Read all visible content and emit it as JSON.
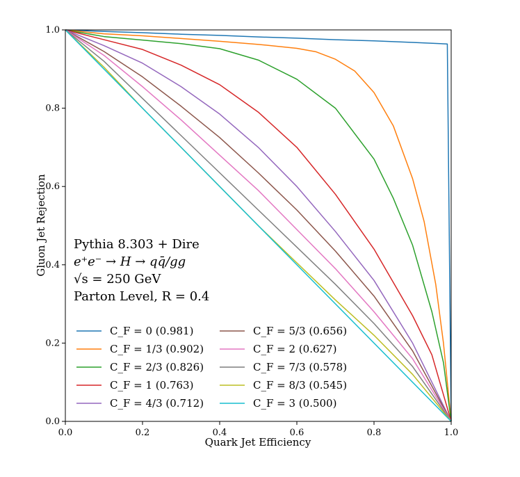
{
  "chart_data": {
    "type": "line",
    "xlabel": "Quark Jet Efficiency",
    "ylabel": "Gluon Jet Rejection",
    "xlim": [
      0.0,
      1.0
    ],
    "ylim": [
      0.0,
      1.0
    ],
    "xticks": [
      "0.0",
      "0.2",
      "0.4",
      "0.6",
      "0.8",
      "1.0"
    ],
    "yticks": [
      "0.0",
      "0.2",
      "0.4",
      "0.6",
      "0.8",
      "1.0"
    ],
    "grid": false,
    "legend_placement": "lower-left",
    "annotations": [
      "Pythia 8.303 + Dire",
      "e⁺e⁻ → H → qq̄/gg",
      "√s = 250 GeV",
      "Parton Level, R = 0.4"
    ],
    "series": [
      {
        "name": "C_F = 0 (0.981)",
        "color": "#1f77b4",
        "x": [
          0.0,
          0.1,
          0.2,
          0.3,
          0.4,
          0.5,
          0.6,
          0.7,
          0.8,
          0.9,
          0.99,
          1.0
        ],
        "y": [
          1.0,
          0.996,
          0.993,
          0.989,
          0.986,
          0.982,
          0.979,
          0.975,
          0.972,
          0.968,
          0.964,
          0.0
        ]
      },
      {
        "name": "C_F = 1/3 (0.902)",
        "color": "#ff7f0e",
        "x": [
          0.0,
          0.1,
          0.2,
          0.3,
          0.4,
          0.5,
          0.6,
          0.65,
          0.7,
          0.75,
          0.8,
          0.85,
          0.9,
          0.93,
          0.96,
          0.98,
          1.0
        ],
        "y": [
          1.0,
          0.99,
          0.985,
          0.978,
          0.971,
          0.963,
          0.953,
          0.944,
          0.925,
          0.895,
          0.84,
          0.755,
          0.62,
          0.51,
          0.35,
          0.2,
          0.0
        ]
      },
      {
        "name": "C_F = 2/3 (0.826)",
        "color": "#2ca02c",
        "x": [
          0.0,
          0.1,
          0.2,
          0.3,
          0.4,
          0.5,
          0.6,
          0.7,
          0.8,
          0.85,
          0.9,
          0.95,
          0.98,
          1.0
        ],
        "y": [
          1.0,
          0.983,
          0.974,
          0.965,
          0.952,
          0.923,
          0.874,
          0.8,
          0.67,
          0.57,
          0.45,
          0.28,
          0.15,
          0.0
        ]
      },
      {
        "name": "C_F = 1 (0.763)",
        "color": "#d62728",
        "x": [
          0.0,
          0.1,
          0.2,
          0.3,
          0.4,
          0.5,
          0.6,
          0.7,
          0.8,
          0.9,
          0.95,
          1.0
        ],
        "y": [
          1.0,
          0.975,
          0.95,
          0.91,
          0.86,
          0.79,
          0.7,
          0.58,
          0.44,
          0.27,
          0.17,
          0.0
        ]
      },
      {
        "name": "C_F = 4/3 (0.712)",
        "color": "#9467bd",
        "x": [
          0.0,
          0.1,
          0.2,
          0.3,
          0.4,
          0.5,
          0.6,
          0.7,
          0.8,
          0.9,
          1.0
        ],
        "y": [
          1.0,
          0.96,
          0.915,
          0.855,
          0.785,
          0.7,
          0.6,
          0.485,
          0.36,
          0.2,
          0.0
        ]
      },
      {
        "name": "C_F = 5/3 (0.656)",
        "color": "#8c564b",
        "x": [
          0.0,
          0.1,
          0.2,
          0.3,
          0.4,
          0.5,
          0.6,
          0.7,
          0.8,
          0.9,
          1.0
        ],
        "y": [
          1.0,
          0.945,
          0.88,
          0.805,
          0.725,
          0.635,
          0.54,
          0.435,
          0.32,
          0.18,
          0.0
        ]
      },
      {
        "name": "C_F = 2 (0.627)",
        "color": "#e377c2",
        "x": [
          0.0,
          0.1,
          0.2,
          0.3,
          0.4,
          0.5,
          0.6,
          0.7,
          0.8,
          0.9,
          1.0
        ],
        "y": [
          1.0,
          0.935,
          0.855,
          0.77,
          0.68,
          0.59,
          0.49,
          0.39,
          0.28,
          0.16,
          0.0
        ]
      },
      {
        "name": "C_F = 7/3 (0.578)",
        "color": "#7f7f7f",
        "x": [
          0.0,
          0.1,
          0.2,
          0.3,
          0.4,
          0.5,
          0.6,
          0.7,
          0.8,
          0.9,
          1.0
        ],
        "y": [
          1.0,
          0.92,
          0.825,
          0.73,
          0.635,
          0.54,
          0.445,
          0.35,
          0.25,
          0.14,
          0.0
        ]
      },
      {
        "name": "C_F = 8/3 (0.545)",
        "color": "#bcbd22",
        "x": [
          0.0,
          0.1,
          0.2,
          0.3,
          0.4,
          0.5,
          0.6,
          0.7,
          0.8,
          0.9,
          1.0
        ],
        "y": [
          1.0,
          0.905,
          0.8,
          0.7,
          0.6,
          0.5,
          0.405,
          0.31,
          0.22,
          0.12,
          0.0
        ]
      },
      {
        "name": "C_F = 3 (0.500)",
        "color": "#17becf",
        "x": [
          0.0,
          1.0
        ],
        "y": [
          1.0,
          0.0
        ]
      }
    ]
  }
}
